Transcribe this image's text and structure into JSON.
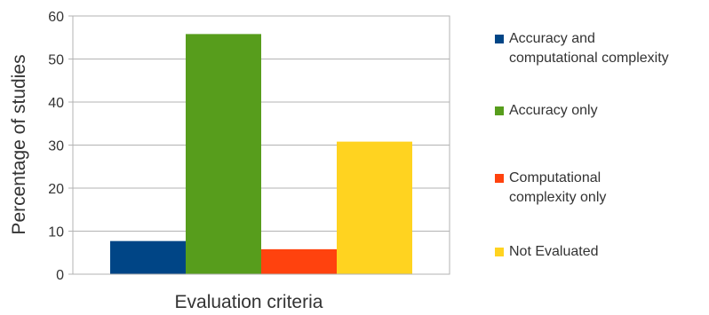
{
  "chart_data": {
    "type": "bar",
    "xlabel": "Evaluation criteria",
    "ylabel": "Percentage of studies",
    "ylim": [
      0,
      60
    ],
    "yticks": [
      0,
      10,
      20,
      30,
      40,
      50,
      60
    ],
    "grid": true,
    "legend_position": "right",
    "series": [
      {
        "name": "Accuracy and\ncomputational complexity",
        "value": 7.7,
        "color": "#004586"
      },
      {
        "name": "Accuracy only",
        "value": 55.8,
        "color": "#579d1c"
      },
      {
        "name": "Computational\ncomplexity only",
        "value": 5.8,
        "color": "#ff420e"
      },
      {
        "name": "Not Evaluated",
        "value": 30.8,
        "color": "#ffd320"
      }
    ]
  }
}
